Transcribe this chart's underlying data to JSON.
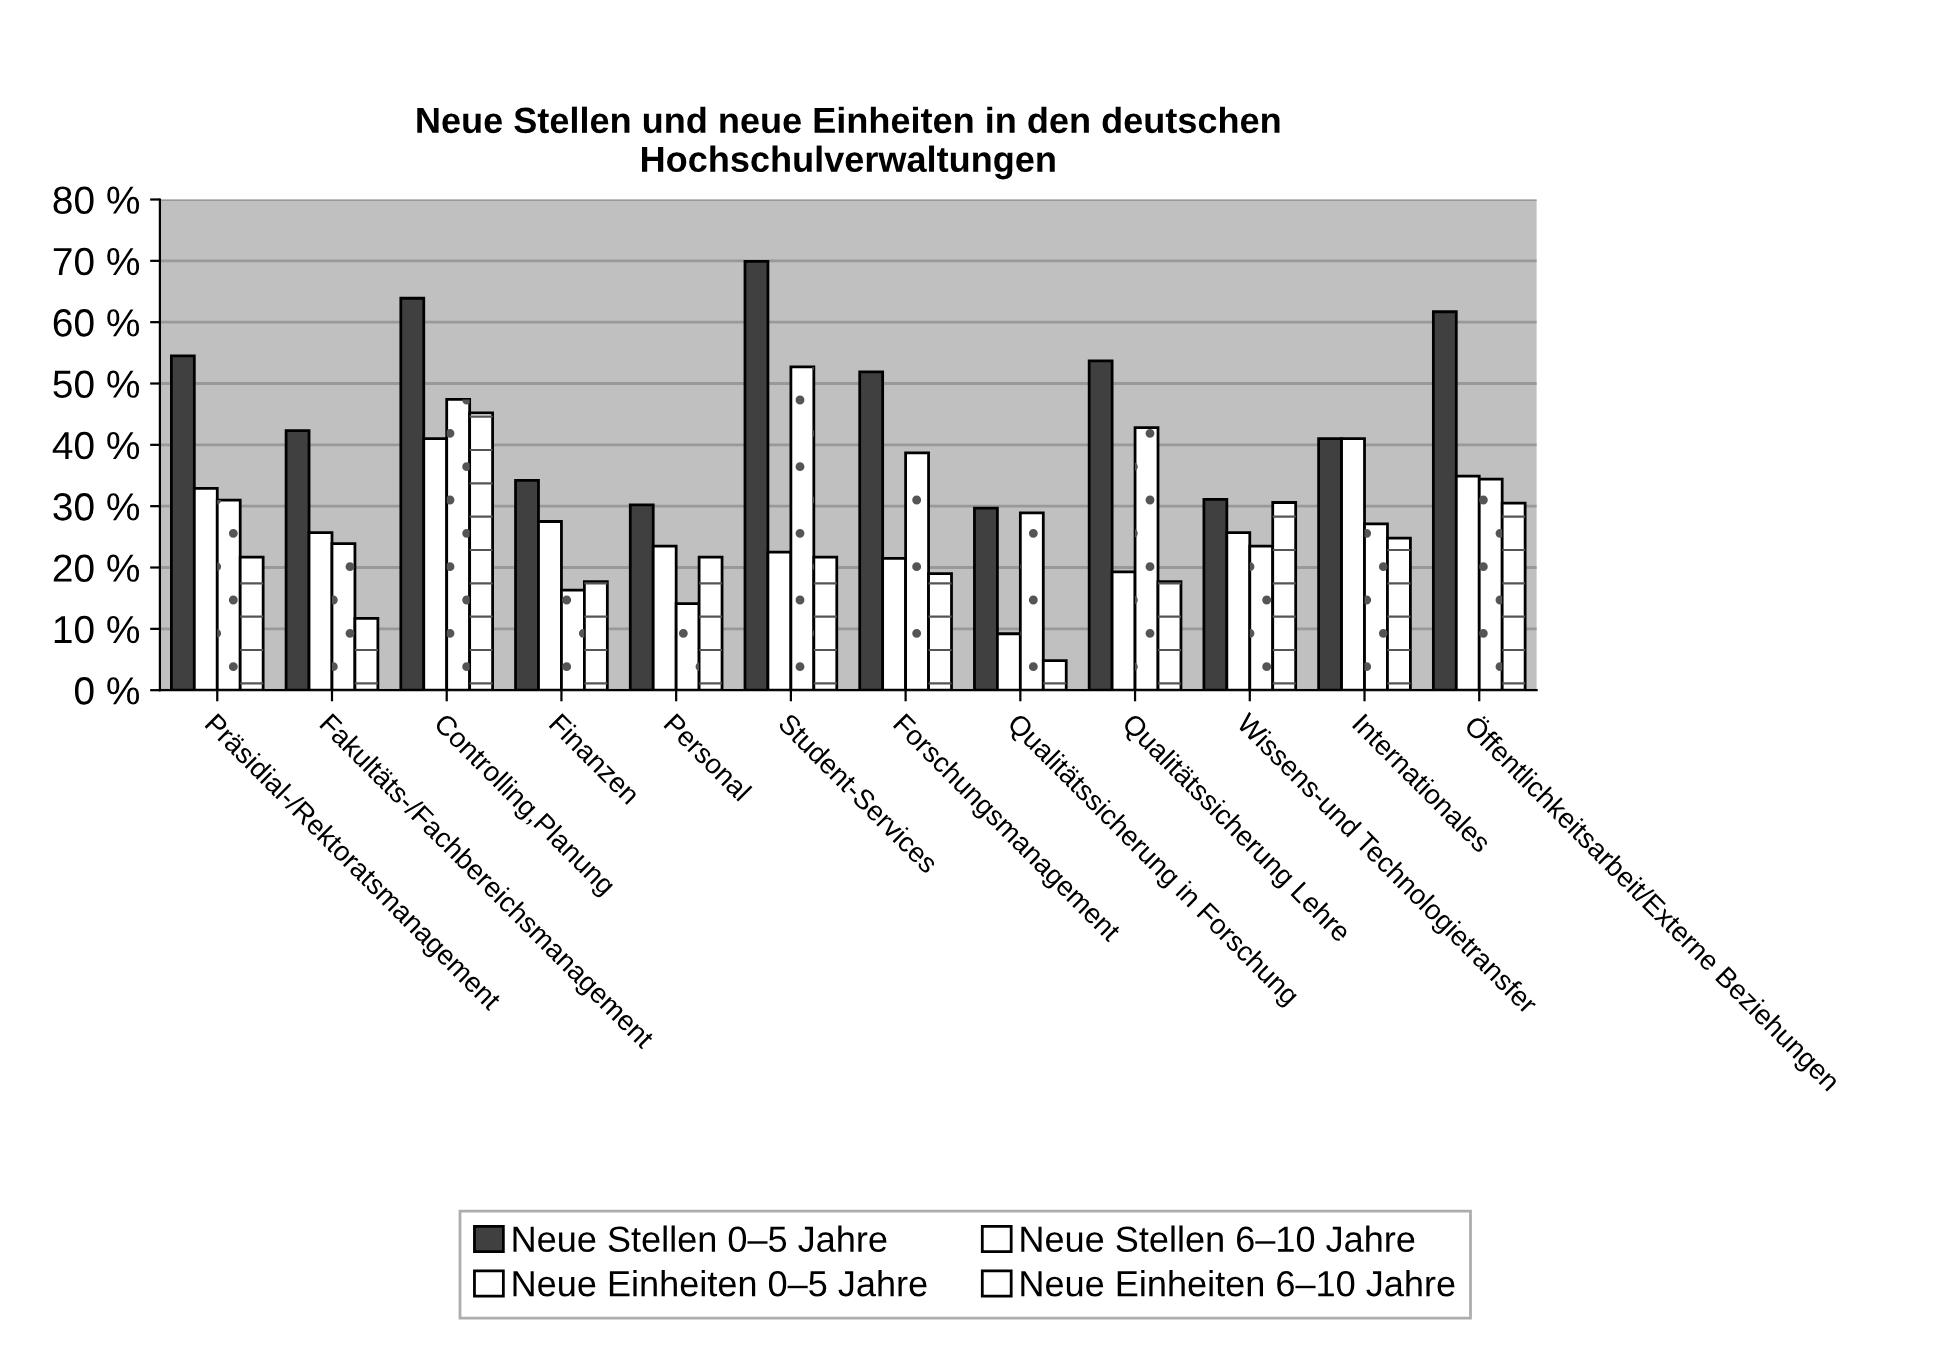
{
  "chart_data": {
    "type": "bar",
    "title": "Neue Stellen und neue Einheiten in den deutschen\nHochschulverwaltungen",
    "categories": [
      "Präsidial-/Rektoratsmanagement",
      "Fakultäts-/Fachbereichsmanagement",
      "Controlling,Planung",
      "Finanzen",
      "Personal",
      "Student-Services",
      "Forschungsmanagement",
      "Qualitätssicherung in Forschung",
      "Qualitätssicherung Lehre",
      "Wissens-und Technologietransfer",
      "Internationales",
      "Öffentlichkeitsarbeit/Externe Beziehungen"
    ],
    "series": [
      {
        "name": "Neue Stellen 0–5 Jahre",
        "color": "#404040",
        "values": [
          54.5,
          42.3,
          63.9,
          34.2,
          30.2,
          69.9,
          51.9,
          29.7,
          53.7,
          31.1,
          41.0,
          61.7
        ]
      },
      {
        "name": "Neue Stellen 6–10 Jahre",
        "color": "#ffffff",
        "values": [
          32.9,
          25.7,
          41.0,
          27.5,
          23.5,
          22.5,
          21.5,
          9.2,
          19.3,
          25.7,
          41.0,
          34.9
        ]
      },
      {
        "name": "Neue Einheiten 0–5 Jahre",
        "color": "#ffffff",
        "values": [
          31.0,
          23.9,
          47.4,
          16.3,
          14.1,
          52.7,
          38.7,
          28.9,
          42.8,
          23.5,
          27.1,
          34.4
        ]
      },
      {
        "name": "Neue Einheiten 6–10 Jahre",
        "color": "#ffffff",
        "values": [
          21.7,
          11.7,
          45.2,
          17.7,
          21.7,
          21.7,
          19.0,
          4.8,
          17.7,
          30.6,
          24.8,
          30.5
        ]
      }
    ],
    "ylim": [
      0,
      80
    ],
    "yticks": [
      {
        "value": 0,
        "label": "0 %"
      },
      {
        "value": 10,
        "label": "10 %"
      },
      {
        "value": 20,
        "label": "20 %"
      },
      {
        "value": 30,
        "label": "30 %"
      },
      {
        "value": 40,
        "label": "40 %"
      },
      {
        "value": 50,
        "label": "50 %"
      },
      {
        "value": 60,
        "label": "60 %"
      },
      {
        "value": 70,
        "label": "70 %"
      },
      {
        "value": 80,
        "label": "80 %"
      }
    ],
    "grid": "y",
    "legend": "bottom"
  }
}
